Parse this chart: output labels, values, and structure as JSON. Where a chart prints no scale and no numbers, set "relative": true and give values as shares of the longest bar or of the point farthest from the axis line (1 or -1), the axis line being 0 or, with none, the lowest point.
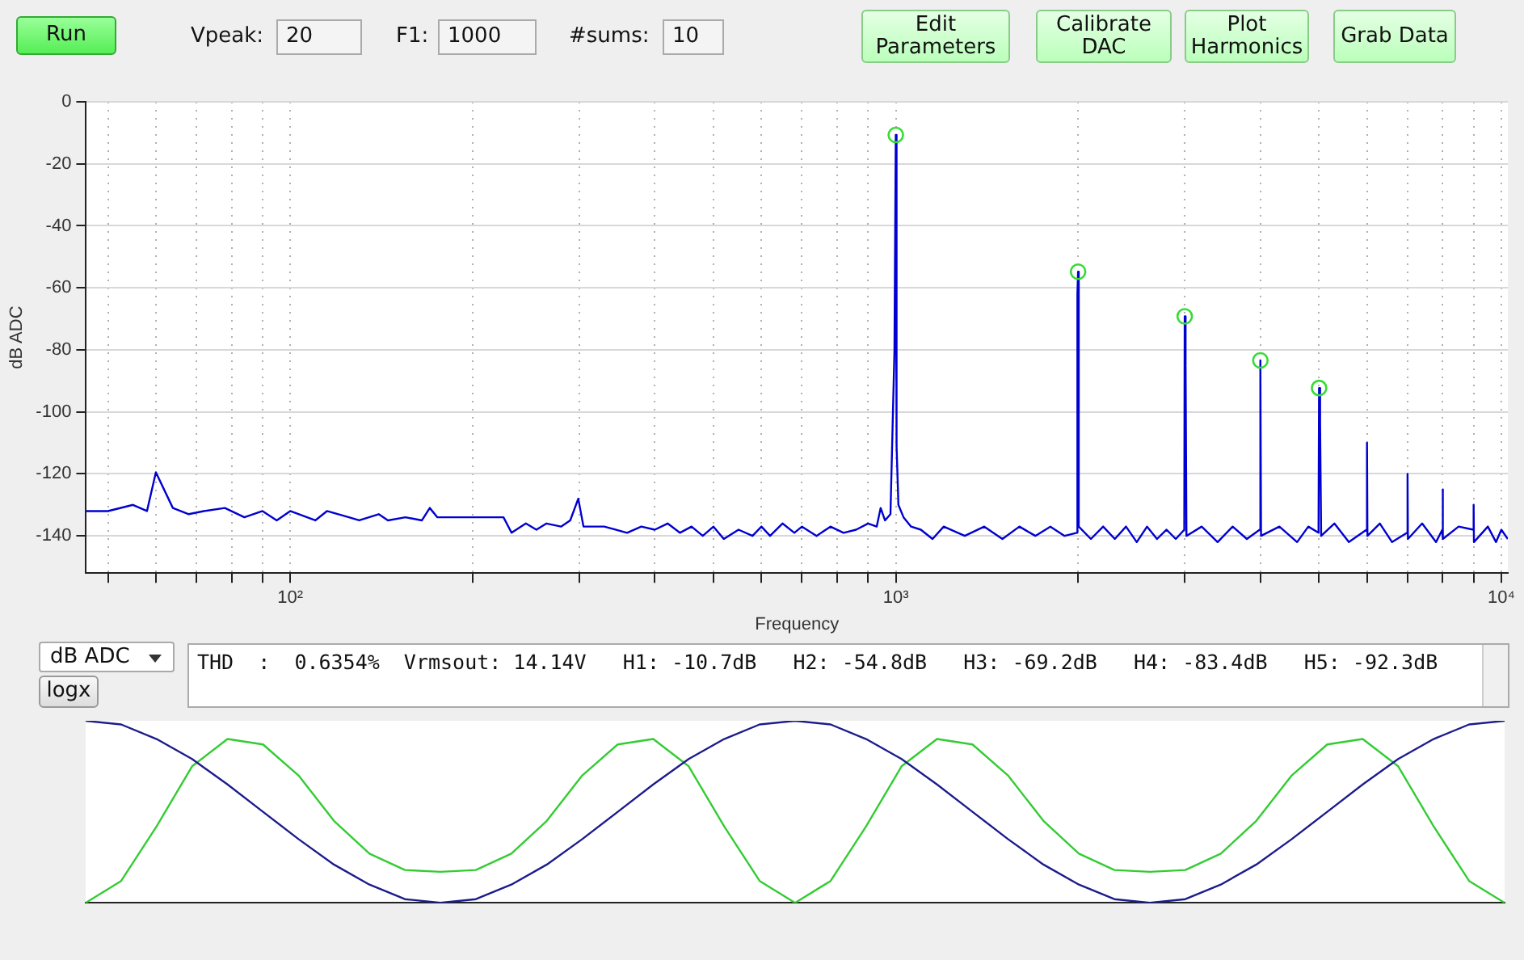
{
  "chart_data": [
    {
      "type": "line",
      "xlabel": "Frequency",
      "ylabel": "dB ADC",
      "log": "x",
      "grid": true,
      "legend": false,
      "marker": "none",
      "xlim": [
        46,
        10250
      ],
      "ylim": [
        -152,
        0
      ],
      "xticks": [
        {
          "value": 50,
          "label": null
        },
        {
          "value": 60,
          "label": null
        },
        {
          "value": 70,
          "label": null
        },
        {
          "value": 80,
          "label": null
        },
        {
          "value": 90,
          "label": null
        },
        {
          "value": 100,
          "label": "10²"
        },
        {
          "value": 200,
          "label": null
        },
        {
          "value": 300,
          "label": null
        },
        {
          "value": 400,
          "label": null
        },
        {
          "value": 500,
          "label": null
        },
        {
          "value": 600,
          "label": null
        },
        {
          "value": 700,
          "label": null
        },
        {
          "value": 800,
          "label": null
        },
        {
          "value": 900,
          "label": null
        },
        {
          "value": 1000,
          "label": "10³"
        },
        {
          "value": 2000,
          "label": null
        },
        {
          "value": 3000,
          "label": null
        },
        {
          "value": 4000,
          "label": null
        },
        {
          "value": 5000,
          "label": null
        },
        {
          "value": 6000,
          "label": null
        },
        {
          "value": 7000,
          "label": null
        },
        {
          "value": 8000,
          "label": null
        },
        {
          "value": 9000,
          "label": null
        },
        {
          "value": 10000,
          "label": "10⁴"
        }
      ],
      "yticks": [
        0,
        -20,
        -40,
        -60,
        -80,
        -100,
        -120,
        -140
      ],
      "series": [
        {
          "color": "#0000d0",
          "x": [
            46,
            50,
            55,
            58,
            60,
            64,
            68,
            72,
            78,
            84,
            90,
            95,
            100,
            110,
            115,
            125,
            130,
            140,
            145,
            155,
            165,
            170,
            175,
            190,
            210,
            225,
            232,
            245,
            255,
            265,
            280,
            290,
            299,
            305,
            330,
            360,
            380,
            400,
            420,
            440,
            460,
            480,
            500,
            520,
            550,
            580,
            600,
            620,
            650,
            680,
            700,
            740,
            780,
            820,
            860,
            900,
            930,
            944,
            960,
            980,
            995,
            1000,
            1003,
            1010,
            1030,
            1060,
            1100,
            1150,
            1200,
            1300,
            1400,
            1500,
            1600,
            1700,
            1800,
            1900,
            1990,
            1995,
            2000,
            2005,
            2100,
            2200,
            2300,
            2400,
            2500,
            2600,
            2700,
            2800,
            2900,
            2995,
            3000,
            3010,
            3020,
            3200,
            3400,
            3600,
            3800,
            3990,
            4000,
            4010,
            4300,
            4600,
            4800,
            4990,
            5000,
            5020,
            5040,
            5300,
            5600,
            5990,
            6000,
            6010,
            6300,
            6600,
            6990,
            7000,
            7010,
            7400,
            7800,
            7990,
            8000,
            8010,
            8500,
            8990,
            9000,
            9010,
            9500,
            9800,
            10000,
            10250
          ],
          "values": [
            -132,
            -132,
            -130,
            -132,
            -119.5,
            -131,
            -133,
            -132,
            -131,
            -134,
            -132,
            -135,
            -132,
            -135,
            -132,
            -134,
            -135,
            -133,
            -135,
            -134,
            -135,
            -131,
            -134,
            -134,
            -134,
            -134,
            -139,
            -136,
            -138,
            -136,
            -137,
            -135,
            -128,
            -137,
            -137,
            -139,
            -137,
            -138,
            -136,
            -139,
            -137,
            -140,
            -137,
            -141,
            -138,
            -140,
            -137,
            -140,
            -136,
            -139,
            -137,
            -140,
            -137,
            -139,
            -138,
            -136,
            -137,
            -131,
            -135,
            -133,
            -80,
            -10.7,
            -111,
            -130,
            -134,
            -137,
            -138,
            -141,
            -137,
            -140,
            -137,
            -141,
            -137,
            -140,
            -137,
            -140,
            -139,
            -62,
            -54.8,
            -137,
            -141,
            -137,
            -141,
            -137,
            -142,
            -137,
            -141,
            -138,
            -141,
            -138,
            -69.2,
            -85,
            -140,
            -137,
            -142,
            -137,
            -141,
            -138,
            -83.4,
            -140,
            -137,
            -142,
            -137,
            -139,
            -92.3,
            -104,
            -140,
            -136,
            -142,
            -138,
            -110,
            -140,
            -136,
            -142,
            -139,
            -120,
            -141,
            -136,
            -142,
            -138,
            -125,
            -141,
            -137,
            -138,
            -130,
            -142,
            -137,
            -142,
            -138,
            -141
          ]
        },
        {
          "type": "scatter",
          "marker": "circle",
          "color": "#33dd33",
          "x": [
            1000,
            2000,
            3000,
            4000,
            5000
          ],
          "values": [
            -10.7,
            -54.8,
            -69.2,
            -83.4,
            -92.3
          ]
        }
      ],
      "annotations": [
        "Run",
        "Vpeak:",
        "20",
        "F1:",
        "1000",
        "#sums:",
        "10",
        "Edit Parameters",
        "Calibrate DAC",
        "Plot Harmonics",
        "Grab Data",
        "dB ADC",
        "logx",
        "THD  :  0.6354%  Vrmsout: 14.14V   H1: -10.7dB   H2: -54.8dB   H3: -69.2dB   H4: -83.4dB   H5: -92.3dB"
      ]
    },
    {
      "type": "line",
      "relative": true,
      "legend": false,
      "grid": false,
      "marker": "none",
      "categories": [
        null,
        null,
        null,
        null,
        null,
        null,
        null,
        null,
        null,
        null,
        null,
        null,
        null,
        null,
        null,
        null,
        null,
        null,
        null,
        null,
        null,
        null,
        null,
        null,
        null,
        null,
        null,
        null,
        null,
        null,
        null,
        null,
        null,
        null,
        null,
        null,
        null,
        null,
        null,
        null,
        null
      ],
      "series": [
        {
          "color": "#1c1c8c",
          "values": [
            1,
            0.98,
            0.9,
            0.79,
            0.65,
            0.5,
            0.35,
            0.21,
            0.1,
            0.02,
            0,
            0.02,
            0.1,
            0.21,
            0.35,
            0.5,
            0.65,
            0.79,
            0.9,
            0.98,
            1,
            0.98,
            0.9,
            0.79,
            0.65,
            0.5,
            0.35,
            0.21,
            0.1,
            0.02,
            0,
            0.02,
            0.1,
            0.21,
            0.35,
            0.5,
            0.65,
            0.79,
            0.9,
            0.98,
            1
          ]
        },
        {
          "color": "#33cc33",
          "values": [
            0,
            0.12,
            0.42,
            0.75,
            0.9,
            0.87,
            0.7,
            0.45,
            0.27,
            0.18,
            0.17,
            0.18,
            0.27,
            0.45,
            0.7,
            0.87,
            0.9,
            0.75,
            0.42,
            0.12,
            0,
            0.12,
            0.42,
            0.75,
            0.9,
            0.87,
            0.7,
            0.45,
            0.27,
            0.18,
            0.17,
            0.18,
            0.27,
            0.45,
            0.7,
            0.87,
            0.9,
            0.75,
            0.42,
            0.12,
            0
          ]
        }
      ]
    }
  ]
}
